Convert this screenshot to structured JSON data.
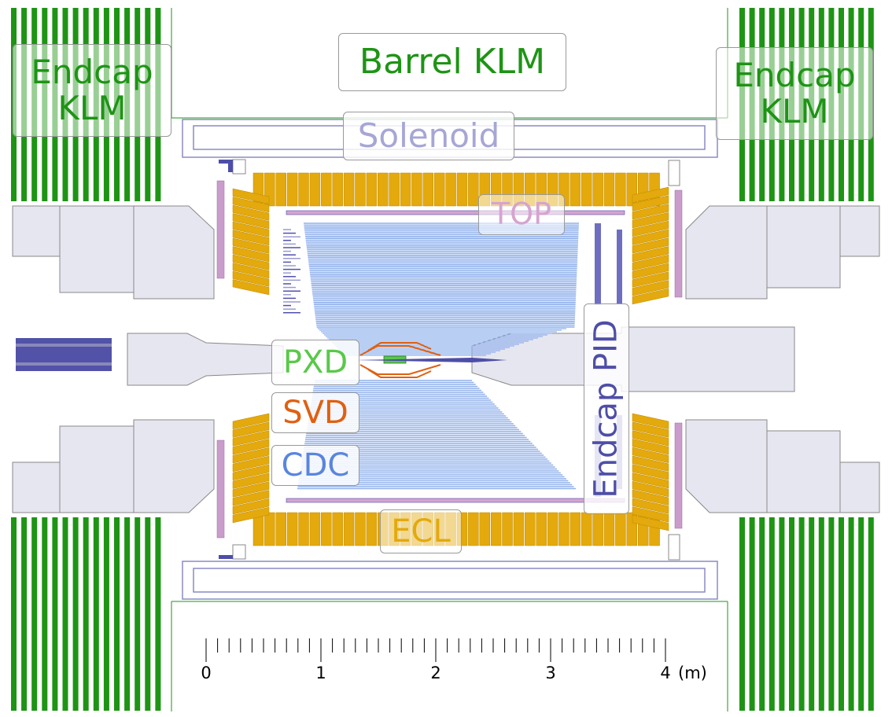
{
  "labels": {
    "barrel_klm": "Barrel KLM",
    "endcap_klm_left": "Endcap\nKLM",
    "endcap_klm_right": "Endcap\nKLM",
    "solenoid": "Solenoid",
    "top": "TOP",
    "pxd": "PXD",
    "svd": "SVD",
    "cdc": "CDC",
    "ecl": "ECL",
    "endcap_pid": "Endcap PID"
  },
  "scale": {
    "ticks": [
      "0",
      "1",
      "2",
      "3",
      "4"
    ],
    "unit": "(m)"
  },
  "colors": {
    "klm": "#1e9415",
    "solenoid": "#a6a6d6",
    "top": "#d6a3d0",
    "pxd": "#5ac84a",
    "svd": "#e06010",
    "cdc": "#5a85de",
    "cdc_wire": "#8fb0ec",
    "ecl": "#e3a90d",
    "pid": "#4e4ea8",
    "yoke": "#e6e6f0"
  }
}
